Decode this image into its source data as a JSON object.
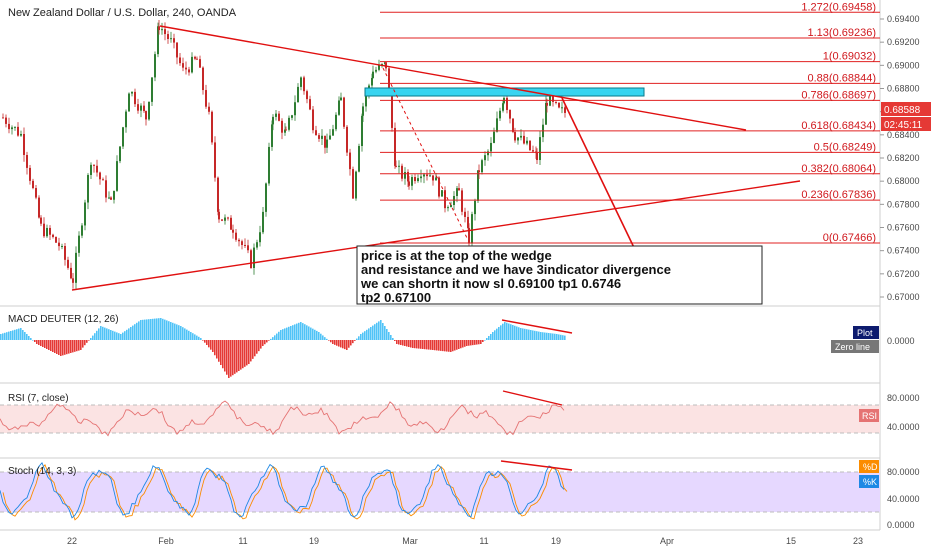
{
  "symbol_title": "New Zealand Dollar / U.S. Dollar, 240, OANDA",
  "price_axis_ticks": [
    "0.69400",
    "0.69200",
    "0.69000",
    "0.68800",
    "0.68600",
    "0.68400",
    "0.68200",
    "0.68000",
    "0.67800",
    "0.67600",
    "0.67400",
    "0.67200",
    "0.67000"
  ],
  "last_price": "0.68588",
  "countdown": "02:45:11",
  "fib_levels": [
    {
      "label": "1.272(0.69458)",
      "price": 0.69458
    },
    {
      "label": "1.13(0.69236)",
      "price": 0.69236
    },
    {
      "label": "1(0.69032)",
      "price": 0.69032
    },
    {
      "label": "0.88(0.68844)",
      "price": 0.68844
    },
    {
      "label": "0.786(0.68697)",
      "price": 0.68697
    },
    {
      "label": "0.618(0.68434)",
      "price": 0.68434
    },
    {
      "label": "0.5(0.68249)",
      "price": 0.68249
    },
    {
      "label": "0.382(0.68064)",
      "price": 0.68064
    },
    {
      "label": "0.236(0.67836)",
      "price": 0.67836
    },
    {
      "label": "0(0.67466)",
      "price": 0.67466
    }
  ],
  "annotation_lines": [
    "price is at the top of the wedge",
    "and resistance and we have 3indicator divergence",
    "we can shortn it now sl 0.69100 tp1 0.6746",
    "tp2 0.67100"
  ],
  "macd": {
    "label": "MACD DEUTER (12, 26)",
    "legend_plot": "Plot",
    "legend_zero": "Zero line",
    "tick": "0.0000"
  },
  "rsi": {
    "label": "RSI (7, close)",
    "legend": "RSI",
    "ticks": [
      "80.0000",
      "40.0000"
    ]
  },
  "stoch": {
    "label": "Stoch (14, 3, 3)",
    "legend_d": "%D",
    "legend_k": "%K",
    "ticks": [
      "80.0000",
      "40.0000",
      "0.0000"
    ]
  },
  "time_axis_labels": [
    "22",
    "Feb",
    "11",
    "19",
    "Mar",
    "11",
    "19",
    "Apr",
    "15",
    "23"
  ],
  "colors": {
    "fib": "#e02020",
    "trend": "#e01010",
    "candle_up": "#2e7d32",
    "candle_down": "#c62828",
    "zone": "#38d4f0",
    "macd_pos": "#4fc3f7",
    "macd_neg": "#e53935",
    "rsi_line": "#e57373",
    "rsi_fill": "#fbe3e3",
    "stoch_fill": "#e6d8ff",
    "stoch_k": "#1e88e5",
    "stoch_d": "#fb8c00"
  },
  "chart_data": {
    "type": "line",
    "title": "New Zealand Dollar / U.S. Dollar, 240, OANDA",
    "x": [
      "Jan 22",
      "Feb 1",
      "Feb 11",
      "Feb 19",
      "Mar 1",
      "Mar 11",
      "Mar 19"
    ],
    "series": [
      {
        "values": [
          0.6745,
          0.6935,
          0.6725,
          0.689,
          0.69,
          0.6745,
          0.6859
        ]
      }
    ],
    "ylim": [
      0.67,
      0.695
    ],
    "x_ticks": [
      "22",
      "Feb",
      "11",
      "19",
      "Mar",
      "11",
      "19",
      "Apr",
      "15",
      "23"
    ]
  }
}
